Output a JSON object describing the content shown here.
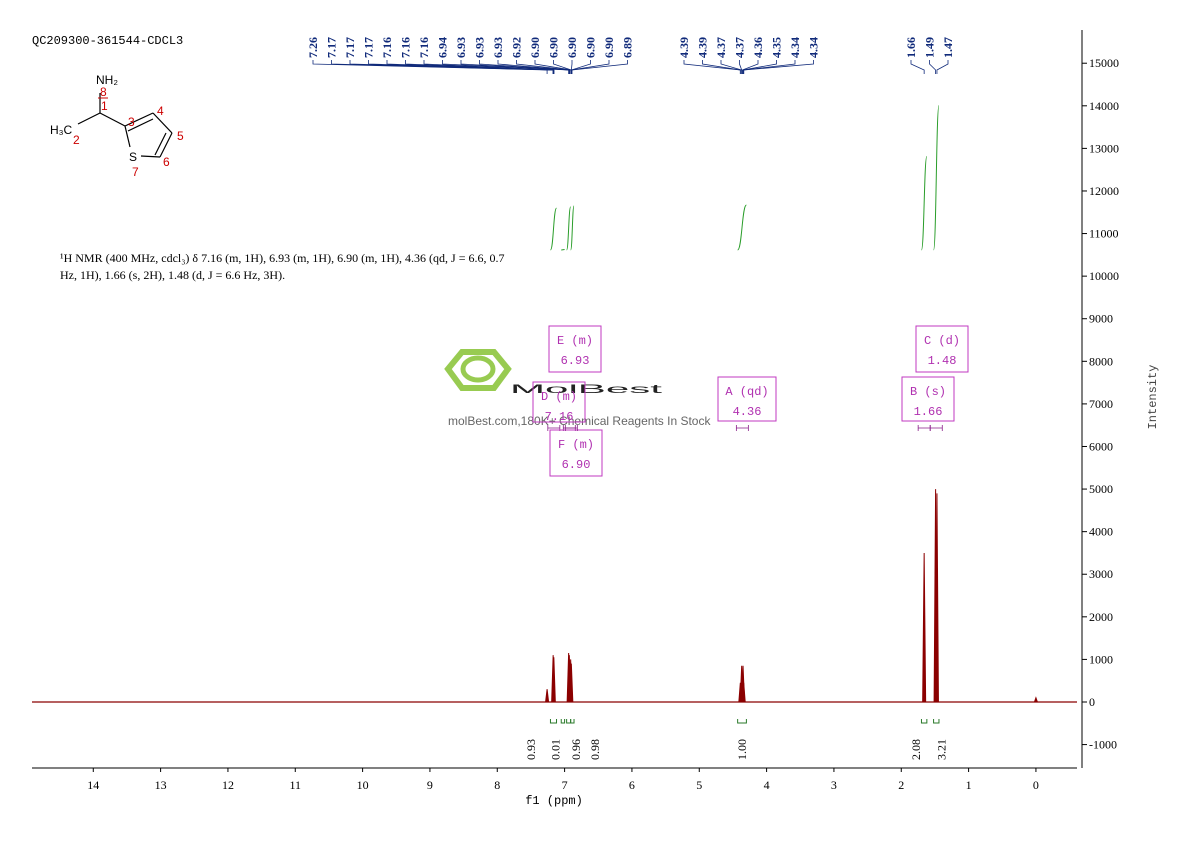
{
  "chart_data": {
    "type": "nmr",
    "title": "QC209300-361544-CDCL3",
    "x_label": "f1 (ppm)",
    "y_label": "Intensity",
    "xlim": [
      14.91,
      -0.61
    ],
    "xticks": [
      14,
      13,
      12,
      11,
      10,
      9,
      8,
      7,
      6,
      5,
      4,
      3,
      2,
      1,
      0
    ],
    "ylim": [
      -1550,
      15780
    ],
    "yticks": [
      -1000,
      0,
      1000,
      2000,
      3000,
      4000,
      5000,
      6000,
      7000,
      8000,
      9000,
      10000,
      11000,
      12000,
      13000,
      14000,
      15000
    ],
    "color": "#8b0000",
    "peaks": {
      "x": [
        7.26,
        7.17,
        7.16,
        6.94,
        6.93,
        6.91,
        6.9,
        4.39,
        4.37,
        4.35,
        4.34,
        1.66,
        1.49,
        1.47,
        0
      ],
      "values": [
        300,
        1100,
        1050,
        1150,
        1100,
        1000,
        900,
        450,
        850,
        850,
        450,
        3500,
        5000,
        4900,
        100
      ]
    },
    "peak_labels": [
      {
        "value": 7.26,
        "label": "7.26"
      },
      {
        "value": 7.17,
        "label": "7.17"
      },
      {
        "value": 7.17,
        "label": "7.17"
      },
      {
        "value": 7.17,
        "label": "7.17"
      },
      {
        "value": 7.16,
        "label": "7.16"
      },
      {
        "value": 7.16,
        "label": "7.16"
      },
      {
        "value": 7.16,
        "label": "7.16"
      },
      {
        "value": 6.94,
        "label": "6.94"
      },
      {
        "value": 6.93,
        "label": "6.93"
      },
      {
        "value": 6.93,
        "label": "6.93"
      },
      {
        "value": 6.93,
        "label": "6.93"
      },
      {
        "value": 6.92,
        "label": "6.92"
      },
      {
        "value": 6.9,
        "label": "6.90"
      },
      {
        "value": 6.9,
        "label": "6.90"
      },
      {
        "value": 6.9,
        "label": "6.90"
      },
      {
        "value": 6.9,
        "label": "6.90"
      },
      {
        "value": 6.9,
        "label": "6.90"
      },
      {
        "value": 6.89,
        "label": "6.89"
      },
      {
        "value": 4.39,
        "label": "4.39"
      },
      {
        "value": 4.39,
        "label": "4.39"
      },
      {
        "value": 4.37,
        "label": "4.37"
      },
      {
        "value": 4.37,
        "label": "4.37"
      },
      {
        "value": 4.36,
        "label": "4.36"
      },
      {
        "value": 4.35,
        "label": "4.35"
      },
      {
        "value": 4.34,
        "label": "4.34"
      },
      {
        "value": 4.34,
        "label": "4.34"
      },
      {
        "value": 1.66,
        "label": "1.66"
      },
      {
        "value": 1.49,
        "label": "1.49"
      },
      {
        "value": 1.47,
        "label": "1.47"
      }
    ],
    "integrals": {
      "ranges": [
        [
          7.21,
          7.12
        ],
        [
          7.05,
          7.0
        ],
        [
          6.97,
          6.91
        ],
        [
          6.91,
          6.86
        ],
        [
          4.43,
          4.3
        ],
        [
          1.7,
          1.62
        ],
        [
          1.52,
          1.44
        ]
      ],
      "values": [
        0.93,
        0.01,
        0.96,
        0.98,
        1,
        2.08,
        3.21
      ],
      "value_labels": [
        "0.93",
        "0.01",
        "0.96",
        "0.98",
        "1.00",
        "2.08",
        "3.21"
      ]
    },
    "multiplets": [
      {
        "label": "E (m)",
        "shift": 6.93
      },
      {
        "label": "D (m)",
        "shift": 7.16
      },
      {
        "label": "F (m)",
        "shift": {
          "value": 6.9,
          "label": "6.90"
        }
      },
      {
        "label": "A (qd)",
        "shift": 4.36
      },
      {
        "label": "B (s)",
        "shift": 1.66
      },
      {
        "label": "C (d)",
        "shift": 1.48
      }
    ],
    "description": [
      "¹H NMR (400 MHz, cdcl₃) δ 7.16 (m, 1H), 6.93 (m, 1H), 6.90 (m, 1H), 4.36 (qd, J = 6.6, 0.7",
      "Hz, 1H), 1.66 (s, 2H), 1.48 (d, J = 6.6 Hz, 3H)."
    ],
    "structure": {
      "atoms": [
        "NH₂",
        "H₃C",
        "S"
      ],
      "numbers": [
        "8",
        "1",
        "3",
        "4",
        "5",
        "6",
        "7",
        "2"
      ]
    },
    "watermark": {
      "brand": "MolBest",
      "tagline": "molBest.com,180K+ Chemical Reagents In Stock"
    }
  }
}
